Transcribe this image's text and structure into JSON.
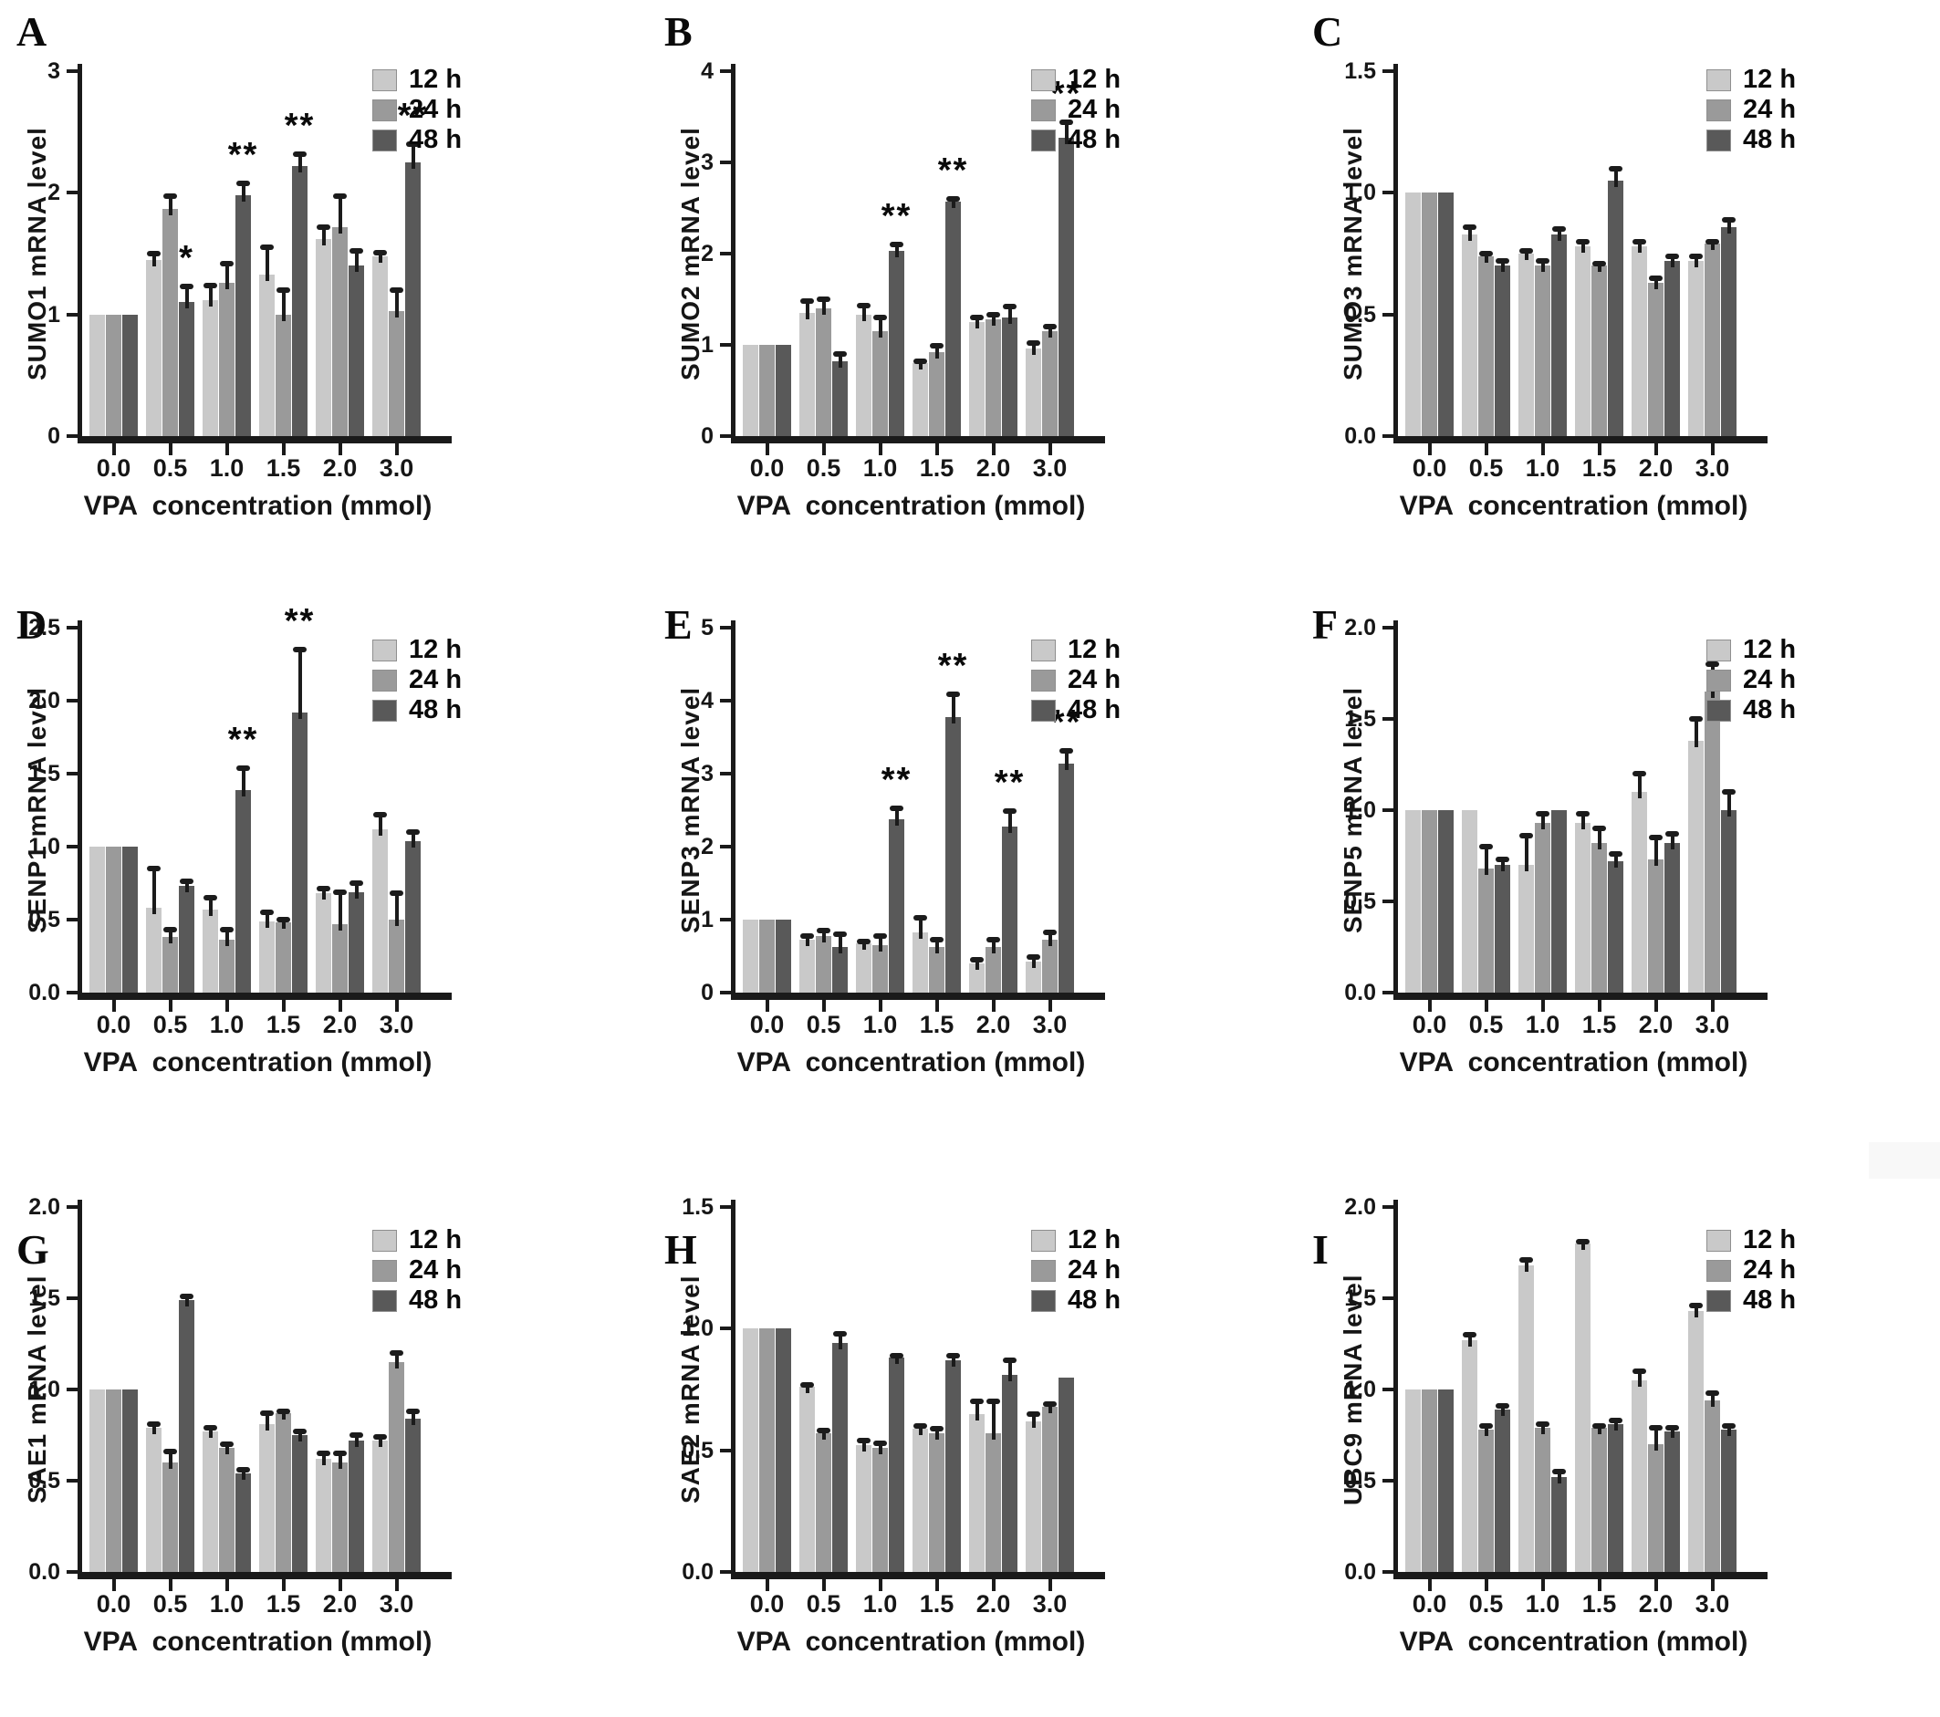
{
  "figure": {
    "x_axis_label": "VPA  concentration (mmol)",
    "legend": [
      "12 h",
      "24 h",
      "48 h"
    ],
    "series_colors": [
      "#c9c9c9",
      "#9a9a9a",
      "#595959"
    ],
    "axis_color": "#1a1a1a",
    "background_color": "#ffffff"
  },
  "chart_data": [
    {
      "type": "bar",
      "panel": "A",
      "ylabel": "SUMO1 mRNA level",
      "ylim": [
        0,
        3
      ],
      "yticks": [
        "0",
        "1",
        "2",
        "3"
      ],
      "categories": [
        "0.0",
        "0.5",
        "1.0",
        "1.5",
        "2.0",
        "3.0"
      ],
      "series": [
        {
          "name": "12 h",
          "values": [
            1.0,
            1.45,
            1.12,
            1.33,
            1.62,
            1.48
          ],
          "errors": [
            0,
            0.05,
            0.12,
            0.22,
            0.1,
            0.03
          ]
        },
        {
          "name": "24 h",
          "values": [
            1.0,
            1.87,
            1.26,
            1.0,
            1.72,
            1.03
          ],
          "errors": [
            0,
            0.1,
            0.16,
            0.2,
            0.25,
            0.17
          ]
        },
        {
          "name": "48 h",
          "values": [
            1.0,
            1.1,
            1.98,
            2.22,
            1.4,
            2.25
          ],
          "errors": [
            0,
            0.13,
            0.1,
            0.1,
            0.12,
            0.15
          ]
        }
      ],
      "sig": [
        {
          "group": 1,
          "series": 2,
          "label": "*"
        },
        {
          "group": 2,
          "series": 2,
          "label": "**"
        },
        {
          "group": 3,
          "series": 2,
          "label": "**"
        },
        {
          "group": 5,
          "series": 2,
          "label": "**"
        }
      ]
    },
    {
      "type": "bar",
      "panel": "B",
      "ylabel": "SUMO2 mRNA level",
      "ylim": [
        0,
        4
      ],
      "yticks": [
        "0",
        "1",
        "2",
        "3",
        "4"
      ],
      "categories": [
        "0.0",
        "0.5",
        "1.0",
        "1.5",
        "2.0",
        "3.0"
      ],
      "series": [
        {
          "name": "12 h",
          "values": [
            1.0,
            1.35,
            1.33,
            0.8,
            1.25,
            0.96
          ],
          "errors": [
            0,
            0.13,
            0.1,
            0.02,
            0.05,
            0.06
          ]
        },
        {
          "name": "24 h",
          "values": [
            1.0,
            1.4,
            1.15,
            0.92,
            1.28,
            1.15
          ],
          "errors": [
            0,
            0.1,
            0.15,
            0.07,
            0.05,
            0.05
          ]
        },
        {
          "name": "48 h",
          "values": [
            1.0,
            0.82,
            2.03,
            2.57,
            1.3,
            3.27
          ],
          "errors": [
            0,
            0.08,
            0.07,
            0.03,
            0.12,
            0.17
          ]
        }
      ],
      "sig": [
        {
          "group": 2,
          "series": 2,
          "label": "**"
        },
        {
          "group": 3,
          "series": 2,
          "label": "**"
        },
        {
          "group": 5,
          "series": 2,
          "label": "**"
        }
      ]
    },
    {
      "type": "bar",
      "panel": "C",
      "ylabel": "SUMO3 mRNA level",
      "ylim": [
        0,
        1.5
      ],
      "yticks": [
        "0.0",
        "0.5",
        "1.0",
        "1.5"
      ],
      "categories": [
        "0.0",
        "0.5",
        "1.0",
        "1.5",
        "2.0",
        "3.0"
      ],
      "series": [
        {
          "name": "12 h",
          "values": [
            1.0,
            0.83,
            0.75,
            0.78,
            0.78,
            0.72
          ],
          "errors": [
            0,
            0.03,
            0.01,
            0.02,
            0.02,
            0.02
          ]
        },
        {
          "name": "24 h",
          "values": [
            1.0,
            0.74,
            0.7,
            0.7,
            0.63,
            0.79
          ],
          "errors": [
            0,
            0.01,
            0.02,
            0.01,
            0.02,
            0.01
          ]
        },
        {
          "name": "48 h",
          "values": [
            1.0,
            0.7,
            0.83,
            1.05,
            0.72,
            0.86
          ],
          "errors": [
            0,
            0.02,
            0.02,
            0.05,
            0.02,
            0.03
          ]
        }
      ],
      "sig": []
    },
    {
      "type": "bar",
      "panel": "D",
      "ylabel": "SENP1 mRNA level",
      "ylim": [
        0,
        2.5
      ],
      "yticks": [
        "0.0",
        "0.5",
        "1.0",
        "1.5",
        "2.0",
        "2.5"
      ],
      "categories": [
        "0.0",
        "0.5",
        "1.0",
        "1.5",
        "2.0",
        "3.0"
      ],
      "series": [
        {
          "name": "12 h",
          "values": [
            1.0,
            0.58,
            0.57,
            0.49,
            0.68,
            1.12
          ],
          "errors": [
            0,
            0.27,
            0.08,
            0.06,
            0.03,
            0.1
          ]
        },
        {
          "name": "24 h",
          "values": [
            1.0,
            0.38,
            0.36,
            0.48,
            0.47,
            0.5
          ],
          "errors": [
            0,
            0.05,
            0.07,
            0.02,
            0.22,
            0.18
          ]
        },
        {
          "name": "48 h",
          "values": [
            1.0,
            0.73,
            1.39,
            1.92,
            0.69,
            1.04
          ],
          "errors": [
            0,
            0.03,
            0.15,
            0.43,
            0.06,
            0.06
          ]
        }
      ],
      "sig": [
        {
          "group": 2,
          "series": 2,
          "label": "**"
        },
        {
          "group": 3,
          "series": 2,
          "label": "**"
        }
      ]
    },
    {
      "type": "bar",
      "panel": "E",
      "ylabel": "SENP3 mRNA level",
      "ylim": [
        0,
        5
      ],
      "yticks": [
        "0",
        "1",
        "2",
        "3",
        "4",
        "5"
      ],
      "categories": [
        "0.0",
        "0.5",
        "1.0",
        "1.5",
        "2.0",
        "3.0"
      ],
      "series": [
        {
          "name": "12 h",
          "values": [
            1.0,
            0.72,
            0.68,
            0.82,
            0.4,
            0.42
          ],
          "errors": [
            0,
            0.05,
            0.02,
            0.2,
            0.05,
            0.07
          ]
        },
        {
          "name": "24 h",
          "values": [
            1.0,
            0.78,
            0.65,
            0.62,
            0.62,
            0.73
          ],
          "errors": [
            0,
            0.07,
            0.12,
            0.1,
            0.1,
            0.1
          ]
        },
        {
          "name": "48 h",
          "values": [
            1.0,
            0.62,
            2.37,
            3.77,
            2.27,
            3.14
          ],
          "errors": [
            0,
            0.18,
            0.15,
            0.32,
            0.22,
            0.17
          ]
        }
      ],
      "sig": [
        {
          "group": 2,
          "series": 2,
          "label": "**"
        },
        {
          "group": 3,
          "series": 2,
          "label": "**"
        },
        {
          "group": 4,
          "series": 2,
          "label": "**"
        },
        {
          "group": 5,
          "series": 2,
          "label": "**"
        }
      ]
    },
    {
      "type": "bar",
      "panel": "F",
      "ylabel": "SENP5 mRNA level",
      "ylim": [
        0,
        2
      ],
      "yticks": [
        "0.0",
        "0.5",
        "1.0",
        "1.5",
        "2.0"
      ],
      "categories": [
        "0.0",
        "0.5",
        "1.0",
        "1.5",
        "2.0",
        "3.0"
      ],
      "series": [
        {
          "name": "12 h",
          "values": [
            1.0,
            1.0,
            0.7,
            0.93,
            1.1,
            1.38
          ],
          "errors": [
            0,
            0,
            0.16,
            0.05,
            0.1,
            0.12
          ]
        },
        {
          "name": "24 h",
          "values": [
            1.0,
            0.68,
            0.93,
            0.82,
            0.73,
            1.65
          ],
          "errors": [
            0,
            0.12,
            0.05,
            0.08,
            0.12,
            0.15
          ]
        },
        {
          "name": "48 h",
          "values": [
            1.0,
            0.7,
            1.0,
            0.72,
            0.82,
            1.0
          ],
          "errors": [
            0,
            0.03,
            0,
            0.04,
            0.05,
            0.1
          ]
        }
      ],
      "sig": []
    },
    {
      "type": "bar",
      "panel": "G",
      "ylabel": "SAE1 mRNA level",
      "ylim": [
        0,
        2
      ],
      "yticks": [
        "0.0",
        "0.5",
        "1.0",
        "1.5",
        "2.0"
      ],
      "categories": [
        "0.0",
        "0.5",
        "1.0",
        "1.5",
        "2.0",
        "3.0"
      ],
      "series": [
        {
          "name": "12 h",
          "values": [
            1.0,
            0.79,
            0.77,
            0.81,
            0.62,
            0.72
          ],
          "errors": [
            0,
            0.02,
            0.02,
            0.06,
            0.03,
            0.02
          ]
        },
        {
          "name": "24 h",
          "values": [
            1.0,
            0.6,
            0.68,
            0.87,
            0.6,
            1.15
          ],
          "errors": [
            0,
            0.06,
            0.02,
            0.01,
            0.05,
            0.05
          ]
        },
        {
          "name": "48 h",
          "values": [
            1.0,
            1.49,
            0.54,
            0.75,
            0.72,
            0.84
          ],
          "errors": [
            0,
            0.02,
            0.02,
            0.02,
            0.03,
            0.04
          ]
        }
      ],
      "sig": []
    },
    {
      "type": "bar",
      "panel": "H",
      "ylabel": "SAE2 mRNA level",
      "ylim": [
        0,
        1.5
      ],
      "yticks": [
        "0.0",
        "0.5",
        "1.0",
        "1.5"
      ],
      "categories": [
        "0.0",
        "0.5",
        "1.0",
        "1.5",
        "2.0",
        "3.0"
      ],
      "series": [
        {
          "name": "12 h",
          "values": [
            1.0,
            0.76,
            0.52,
            0.59,
            0.65,
            0.62
          ],
          "errors": [
            0,
            0.01,
            0.02,
            0.01,
            0.05,
            0.03
          ]
        },
        {
          "name": "24 h",
          "values": [
            1.0,
            0.57,
            0.51,
            0.57,
            0.57,
            0.68
          ],
          "errors": [
            0,
            0.01,
            0.02,
            0.02,
            0.13,
            0.01
          ]
        },
        {
          "name": "48 h",
          "values": [
            1.0,
            0.94,
            0.88,
            0.87,
            0.81,
            0.8
          ],
          "errors": [
            0,
            0.04,
            0.01,
            0.02,
            0.06,
            0
          ]
        }
      ],
      "sig": []
    },
    {
      "type": "bar",
      "panel": "I",
      "ylabel": "UBC9 mRNA level",
      "ylim": [
        0,
        2
      ],
      "yticks": [
        "0.0",
        "0.5",
        "1.0",
        "1.5",
        "2.0"
      ],
      "categories": [
        "0.0",
        "0.5",
        "1.0",
        "1.5",
        "2.0",
        "3.0"
      ],
      "series": [
        {
          "name": "12 h",
          "values": [
            1.0,
            1.27,
            1.68,
            1.8,
            1.05,
            1.43
          ],
          "errors": [
            0,
            0.03,
            0.03,
            0.01,
            0.05,
            0.03
          ]
        },
        {
          "name": "24 h",
          "values": [
            1.0,
            0.78,
            0.79,
            0.79,
            0.7,
            0.94
          ],
          "errors": [
            0,
            0.02,
            0.02,
            0.01,
            0.09,
            0.04
          ]
        },
        {
          "name": "48 h",
          "values": [
            1.0,
            0.89,
            0.52,
            0.81,
            0.77,
            0.78
          ],
          "errors": [
            0,
            0.02,
            0.03,
            0.02,
            0.02,
            0.02
          ]
        }
      ],
      "sig": []
    }
  ]
}
